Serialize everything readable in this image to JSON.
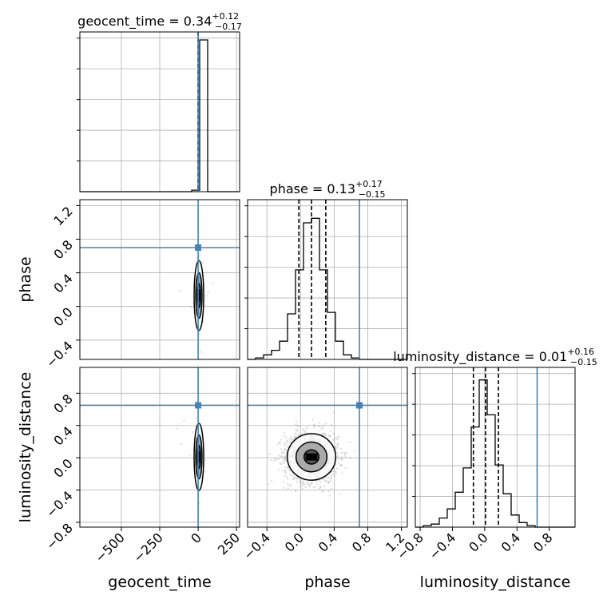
{
  "chart_data": {
    "type": "corner",
    "parameters": [
      "geocent_time",
      "phase",
      "luminosity_distance"
    ],
    "titles": [
      {
        "param": "geocent_time",
        "prefix": "geocent_time = ",
        "median": "0.34",
        "plus": "+0.12",
        "minus": "−0.17"
      },
      {
        "param": "phase",
        "prefix": "phase = ",
        "median": "0.13",
        "plus": "+0.17",
        "minus": "−0.15"
      },
      {
        "param": "luminosity_distance",
        "prefix": "luminosity_distance = ",
        "median": "0.01",
        "plus": "+0.16",
        "minus": "−0.15"
      }
    ],
    "xlabels": [
      "geocent_time",
      "phase",
      "luminosity_distance"
    ],
    "ylabels": [
      "phase",
      "luminosity_distance"
    ],
    "ranges": {
      "geocent_time": [
        -770,
        270
      ],
      "phase": [
        -0.63,
        1.27
      ],
      "luminosity_distance": [
        -0.86,
        1.12
      ]
    },
    "ticks": {
      "geocent_time": [
        "−500",
        "−250",
        "0",
        "250"
      ],
      "phase": [
        "−0.4",
        "0.0",
        "0.4",
        "0.8",
        "1.2"
      ],
      "luminosity_distance": [
        "−0.8",
        "−0.4",
        "0.0",
        "0.4",
        "0.8"
      ]
    },
    "tick_values": {
      "geocent_time": [
        -500,
        -250,
        0,
        250
      ],
      "phase": [
        -0.4,
        0.0,
        0.4,
        0.8,
        1.2
      ],
      "luminosity_distance": [
        -0.8,
        -0.4,
        0.0,
        0.4,
        0.8
      ]
    },
    "truths": {
      "geocent_time": 0,
      "phase": 0.7,
      "luminosity_distance": 0.65
    },
    "quantiles": {
      "geocent_time": [
        0.17,
        0.34,
        0.46
      ],
      "phase": [
        -0.02,
        0.13,
        0.3
      ],
      "luminosity_distance": [
        -0.14,
        0.01,
        0.17
      ]
    },
    "histograms": {
      "geocent_time": {
        "edges": [
          -770,
          -718,
          -666,
          -614,
          -562,
          -510,
          -458,
          -406,
          -354,
          -302,
          -250,
          -198,
          -146,
          -94,
          -42,
          10,
          62,
          114,
          166,
          218,
          270
        ],
        "counts": [
          0,
          0,
          0,
          0,
          0,
          0,
          0,
          0,
          0,
          0,
          0,
          0,
          0,
          0,
          0.01,
          1.0,
          0,
          0,
          0,
          0
        ]
      },
      "phase": {
        "edges": [
          -0.63,
          -0.535,
          -0.44,
          -0.345,
          -0.25,
          -0.155,
          -0.06,
          0.035,
          0.13,
          0.225,
          0.32,
          0.415,
          0.51,
          0.605,
          0.7,
          0.795,
          0.89,
          0.985,
          1.08,
          1.175,
          1.27
        ],
        "counts": [
          0,
          0.01,
          0.03,
          0.06,
          0.12,
          0.3,
          0.59,
          0.9,
          0.93,
          0.59,
          0.31,
          0.12,
          0.03,
          0.01,
          0,
          0,
          0,
          0,
          0,
          0
        ]
      },
      "luminosity_distance": {
        "edges": [
          -0.86,
          -0.761,
          -0.662,
          -0.563,
          -0.464,
          -0.365,
          -0.266,
          -0.167,
          -0.068,
          0.031,
          0.13,
          0.229,
          0.328,
          0.427,
          0.526,
          0.625,
          0.724,
          0.823,
          0.922,
          1.021,
          1.12
        ],
        "counts": [
          0,
          0.01,
          0.02,
          0.06,
          0.12,
          0.23,
          0.39,
          0.66,
          0.97,
          0.74,
          0.41,
          0.22,
          0.08,
          0.03,
          0.01,
          0,
          0,
          0,
          0,
          0
        ]
      }
    },
    "samples": {
      "geocent_time": {
        "mean": 5,
        "sd": 12
      },
      "phase": {
        "mean": 0.13,
        "sd": 0.16
      },
      "luminosity_distance": {
        "mean": 0.01,
        "sd": 0.16
      }
    },
    "grid": true,
    "colors": {
      "truth": "#4682b4",
      "hist": "#000000",
      "grid": "#b0b0b0",
      "scatter": "#999999"
    }
  }
}
